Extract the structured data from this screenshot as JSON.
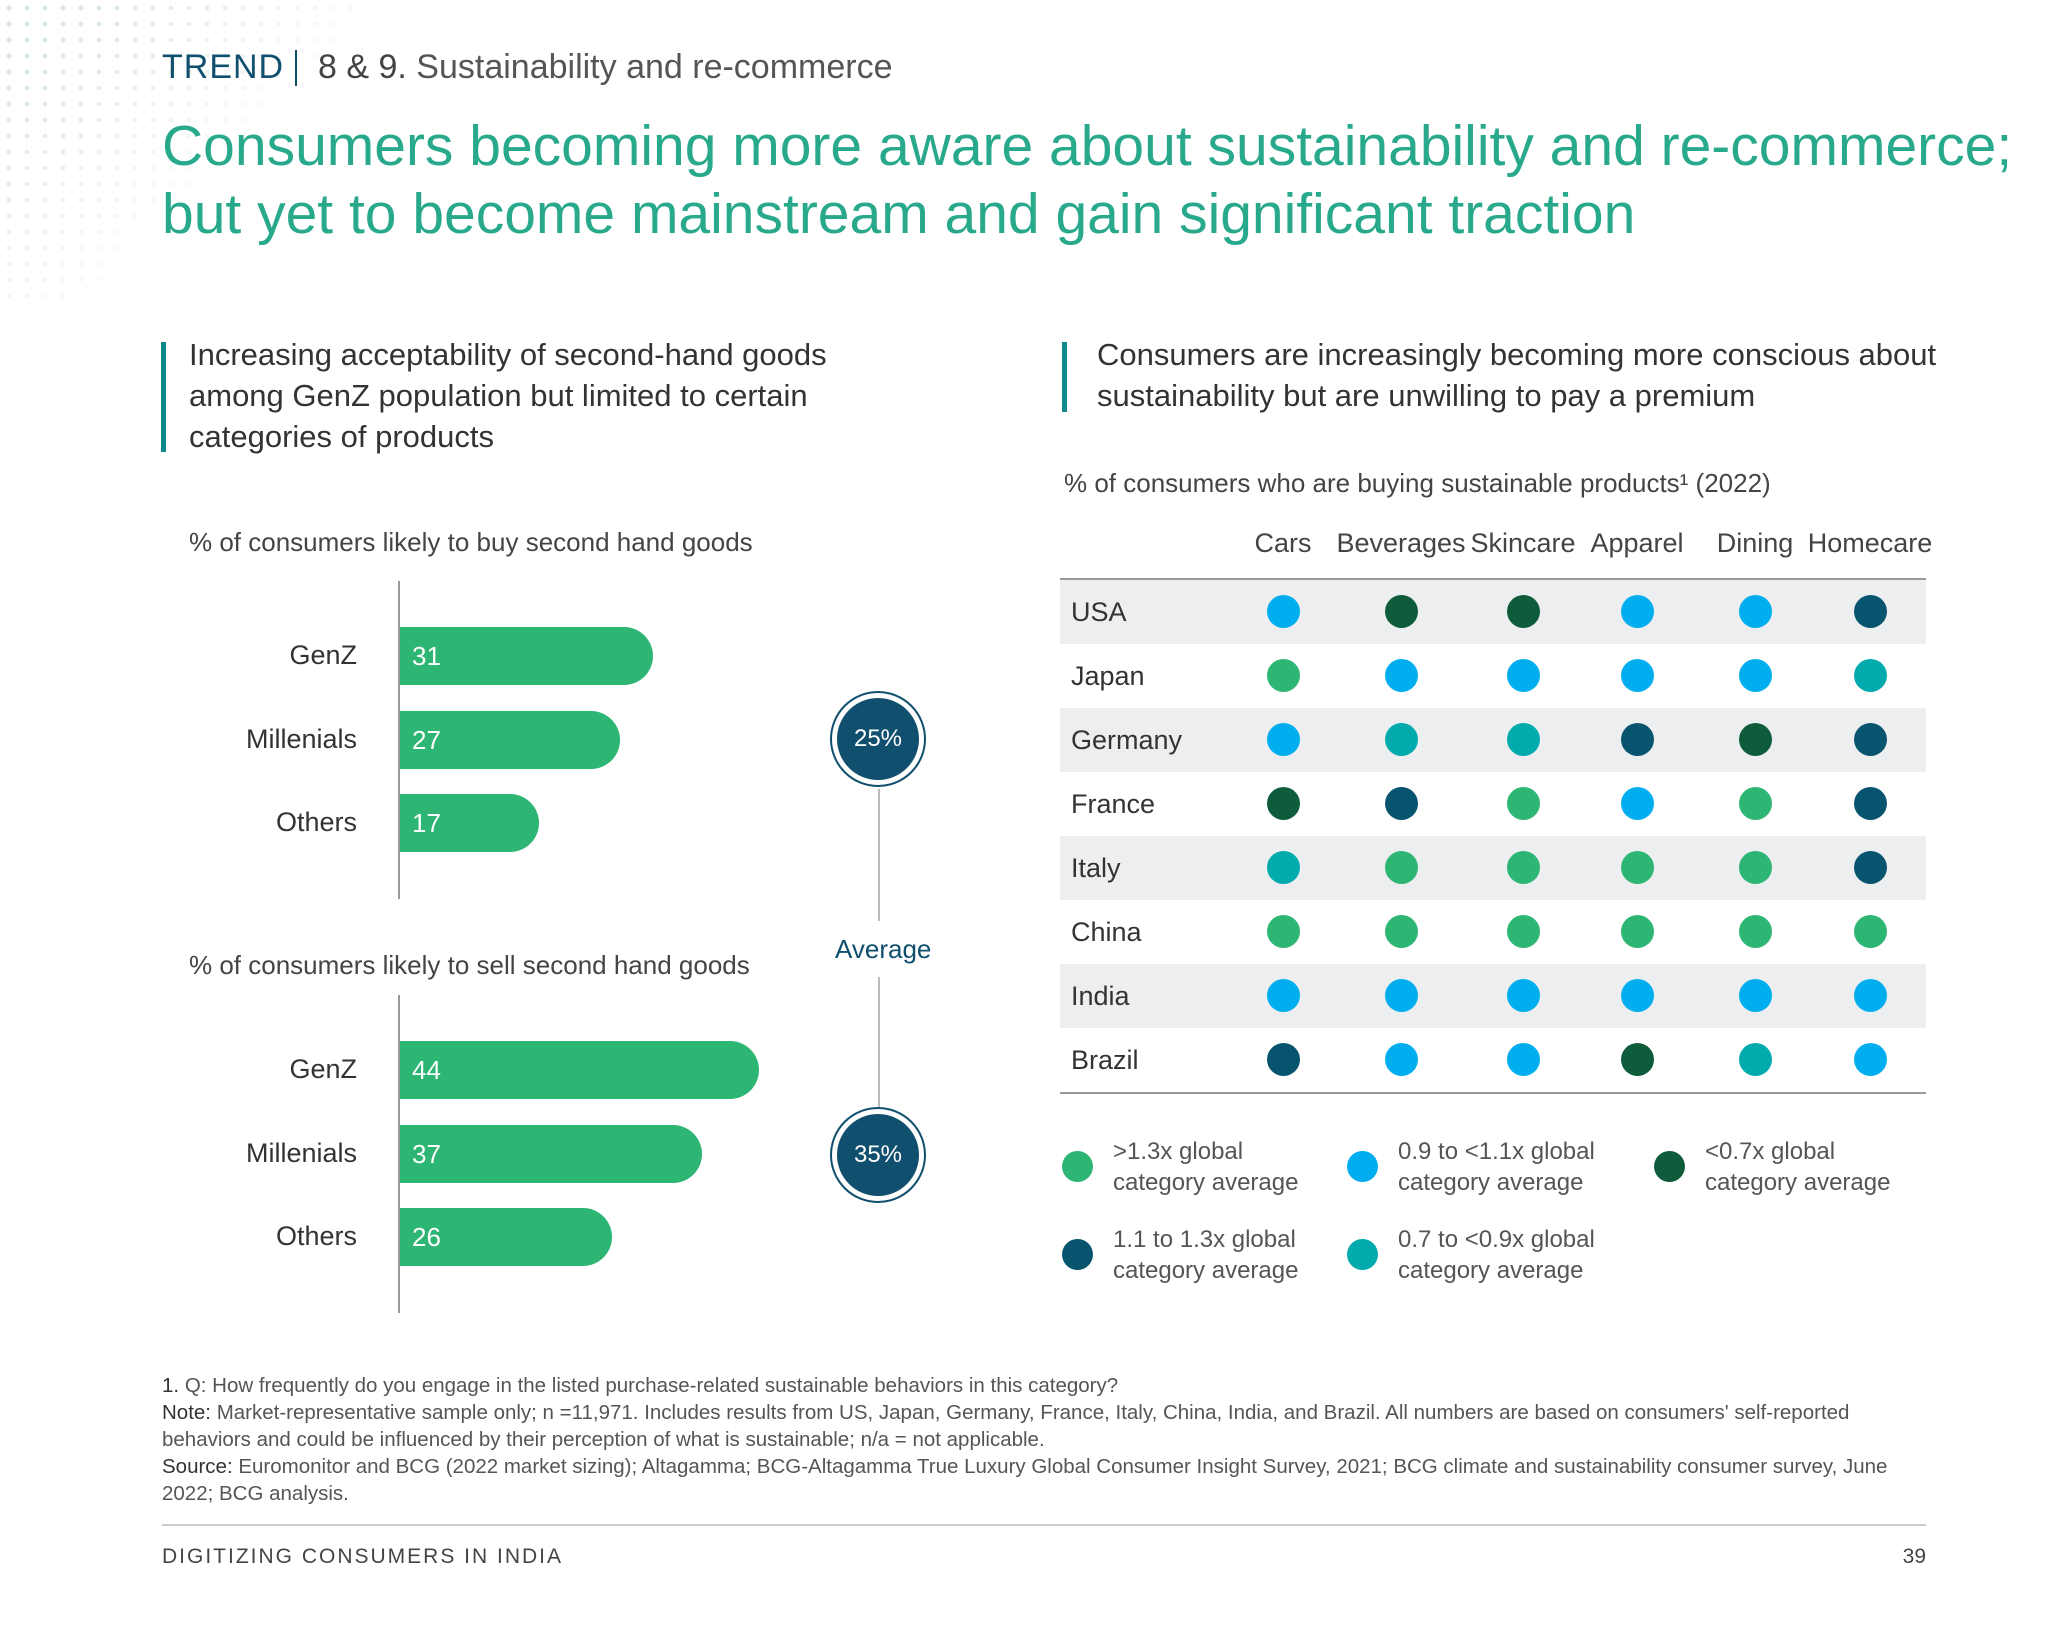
{
  "header": {
    "section": "TREND",
    "number": "8 & 9.",
    "topic": "Sustainability and re-commerce"
  },
  "title": "Consumers becoming more aware about sustainability and re-commerce; but yet to become mainstream and gain significant traction",
  "left": {
    "subtitle": "Increasing acceptability of second-hand goods among GenZ population but limited to certain categories of products",
    "buy": {
      "label": "% of consumers likely to buy second hand goods",
      "categories": [
        "GenZ",
        "Millenials",
        "Others"
      ],
      "values": [
        31,
        27,
        17
      ],
      "average": "25%"
    },
    "sell": {
      "label": "% of consumers likely to sell second hand goods",
      "categories": [
        "GenZ",
        "Millenials",
        "Others"
      ],
      "values": [
        44,
        37,
        26
      ],
      "average": "35%"
    },
    "average_label": "Average",
    "bar_color": "#2db573"
  },
  "right": {
    "subtitle": "Consumers are increasingly becoming more conscious about sustainability but are unwilling to pay a premium",
    "chart_label": "% of consumers who are buying sustainable products¹ (2022)",
    "columns": [
      "Cars",
      "Beverages",
      "Skincare",
      "Apparel",
      "Dining",
      "Homecare"
    ],
    "rows": [
      {
        "country": "USA",
        "levels": [
          "b",
          "c",
          "c",
          "b",
          "b",
          "d"
        ]
      },
      {
        "country": "Japan",
        "levels": [
          "a",
          "b",
          "b",
          "b",
          "b",
          "e"
        ]
      },
      {
        "country": "Germany",
        "levels": [
          "b",
          "e",
          "e",
          "d",
          "c",
          "d"
        ]
      },
      {
        "country": "France",
        "levels": [
          "c",
          "d",
          "a",
          "b",
          "a",
          "d"
        ]
      },
      {
        "country": "Italy",
        "levels": [
          "e",
          "a",
          "a",
          "a",
          "a",
          "d"
        ]
      },
      {
        "country": "China",
        "levels": [
          "a",
          "a",
          "a",
          "a",
          "a",
          "a"
        ]
      },
      {
        "country": "India",
        "levels": [
          "b",
          "b",
          "b",
          "b",
          "b",
          "b"
        ]
      },
      {
        "country": "Brazil",
        "levels": [
          "d",
          "b",
          "b",
          "c",
          "e",
          "b"
        ]
      }
    ],
    "legend": {
      "a": {
        "text": ">1.3x global category average",
        "color": "#2db573"
      },
      "b": {
        "text": "0.9 to <1.1x global category average",
        "color": "#00aeef"
      },
      "c": {
        "text": "<0.7x global category average",
        "color": "#0e5c3c"
      },
      "d": {
        "text": "1.1 to 1.3x global category average",
        "color": "#07546f"
      },
      "e": {
        "text": "0.7 to <0.9x global category average",
        "color": "#00aaad"
      }
    }
  },
  "footnotes": {
    "n1_label": "1.",
    "n1": "Q: How frequently do you engage in the listed purchase-related sustainable behaviors in this category?",
    "note_label": "Note:",
    "note": "Market-representative sample only; n =11,971. Includes results from US, Japan, Germany, France, Italy, China, India, and Brazil. All numbers are based on consumers' self-reported behaviors and could be influenced by their perception of what is sustainable; n/a = not applicable.",
    "source_label": "Source:",
    "source": "Euromonitor and BCG (2022 market sizing); Altagamma; BCG-Altagamma True Luxury Global Consumer Insight Survey, 2021; BCG climate and sustainability consumer survey, June 2022; BCG analysis."
  },
  "footer": {
    "publication": "DIGITIZING CONSUMERS IN INDIA",
    "page": "39"
  }
}
